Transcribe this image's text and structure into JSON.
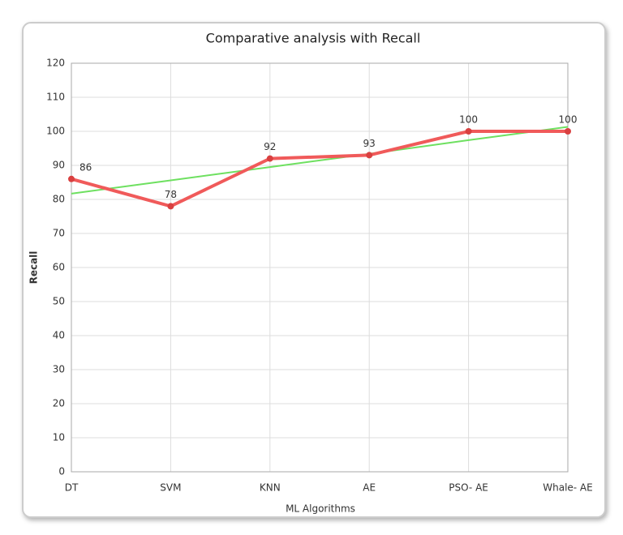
{
  "chart_data": {
    "type": "line",
    "title": "Comparative analysis with Recall",
    "x_label": "ML Algorithms",
    "y_label": "Recall",
    "categories": [
      "DT",
      "SVM",
      "KNN",
      "AE",
      "PSO- AE",
      "Whale- AE"
    ],
    "series": [
      {
        "color": "#f05a5a",
        "values": [
          86,
          78,
          92,
          93,
          100,
          100
        ]
      }
    ],
    "trend": {
      "color": "#6ee060",
      "values": [
        81.7,
        85.6,
        89.5,
        93.4,
        97.4,
        101.3
      ]
    },
    "ylim": [
      0,
      120
    ],
    "yticks": [
      0,
      10,
      20,
      30,
      40,
      50,
      60,
      70,
      80,
      90,
      100,
      110,
      120
    ],
    "grid": true
  }
}
